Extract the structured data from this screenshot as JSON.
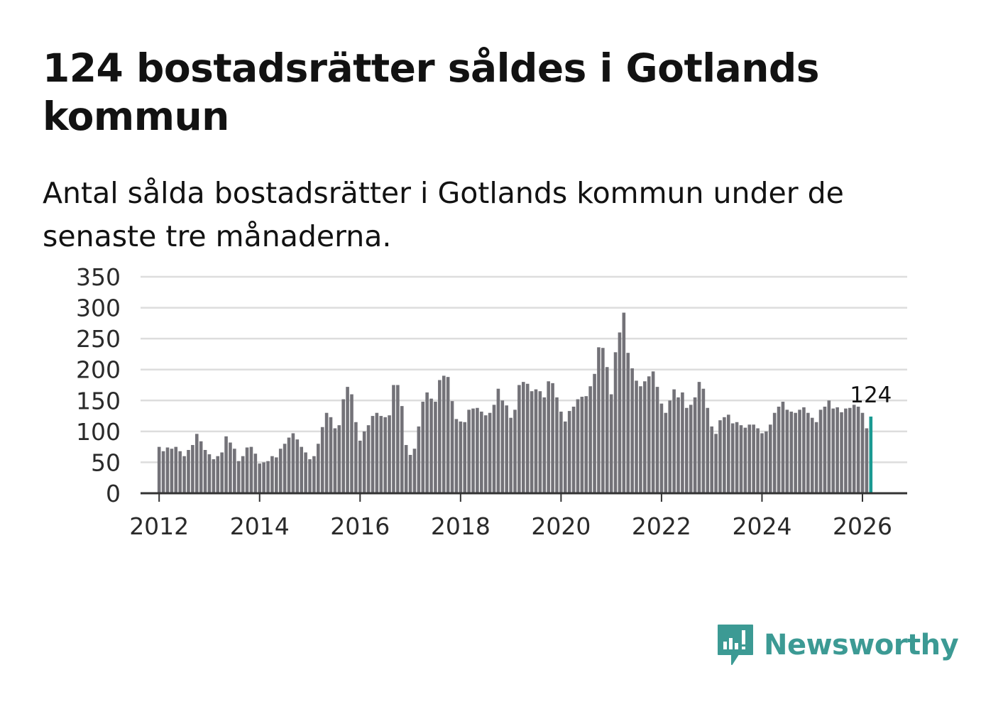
{
  "header": {
    "title": "124 bostadsrätter såldes i Gotlands kommun",
    "subtitle": "Antal sålda bostadsrätter i Gotlands kommun under de senaste tre månaderna."
  },
  "colors": {
    "bar": "#737278",
    "highlight": "#1a9a92",
    "grid": "#dddddd",
    "axis": "#333333",
    "brand": "#3c9a94"
  },
  "chart_data": {
    "type": "bar",
    "title": "Antal sålda bostadsrätter i Gotlands kommun",
    "xlabel": "",
    "ylabel": "",
    "ylim": [
      0,
      350
    ],
    "yticks": [
      0,
      50,
      100,
      150,
      200,
      250,
      300,
      350
    ],
    "ytick_labels": [
      "0",
      "50",
      "100",
      "150",
      "200",
      "250",
      "300",
      "350"
    ],
    "xticks": [
      2012,
      2014,
      2016,
      2018,
      2020,
      2022,
      2024,
      2026
    ],
    "xtick_labels": [
      "2012",
      "2014",
      "2016",
      "2018",
      "2020",
      "2022",
      "2024",
      "2026"
    ],
    "x_start": 2012.0,
    "x_step": 0.0833333,
    "grid": true,
    "highlight_label": "124",
    "values": [
      75,
      68,
      74,
      72,
      75,
      68,
      60,
      70,
      78,
      96,
      84,
      70,
      63,
      55,
      60,
      66,
      92,
      82,
      72,
      52,
      60,
      74,
      75,
      64,
      48,
      50,
      52,
      60,
      58,
      72,
      80,
      90,
      97,
      87,
      75,
      66,
      55,
      60,
      80,
      107,
      130,
      123,
      105,
      110,
      152,
      172,
      160,
      115,
      85,
      100,
      110,
      125,
      130,
      125,
      123,
      126,
      175,
      175,
      141,
      78,
      62,
      72,
      108,
      148,
      163,
      153,
      148,
      183,
      190,
      188,
      149,
      120,
      116,
      115,
      135,
      137,
      138,
      132,
      126,
      130,
      143,
      169,
      150,
      142,
      122,
      135,
      175,
      180,
      177,
      165,
      168,
      165,
      155,
      181,
      178,
      155,
      132,
      116,
      133,
      140,
      152,
      156,
      157,
      173,
      193,
      236,
      235,
      204,
      160,
      228,
      260,
      292,
      227,
      202,
      182,
      173,
      181,
      189,
      197,
      172,
      145,
      130,
      150,
      168,
      155,
      163,
      138,
      143,
      155,
      180,
      169,
      138,
      108,
      96,
      118,
      123,
      127,
      113,
      115,
      110,
      106,
      111,
      111,
      105,
      97,
      100,
      111,
      130,
      140,
      148,
      135,
      132,
      130,
      135,
      139,
      130,
      122,
      115,
      135,
      140,
      150,
      137,
      139,
      131,
      137,
      138,
      143,
      140,
      130,
      105,
      124
    ]
  },
  "logo": {
    "text": "Newsworthy",
    "icon": "newsworthy-chart-icon"
  }
}
